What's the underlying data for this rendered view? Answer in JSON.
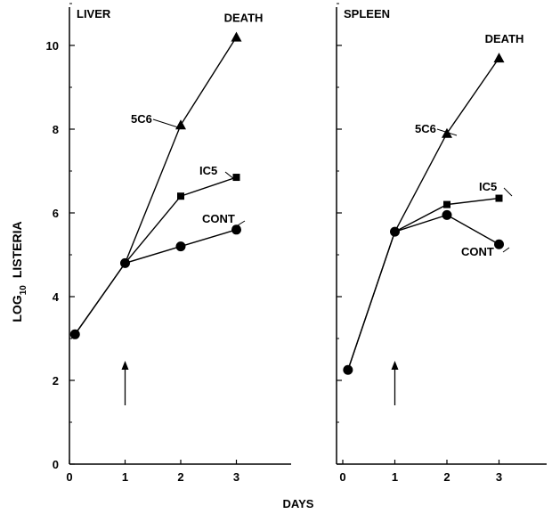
{
  "figure": {
    "ylabel_main": "LOG",
    "ylabel_sub": "10",
    "ylabel_rest": "LISTERIA",
    "xlabel": "DAYS"
  },
  "chart_data": [
    {
      "type": "line",
      "title": "LIVER",
      "xlabel": "DAYS",
      "ylabel": "LOG10 LISTERIA",
      "xlim": [
        0,
        4
      ],
      "ylim": [
        0,
        11
      ],
      "xticks": [
        0,
        1,
        2,
        3
      ],
      "yticks": [
        0,
        2,
        4,
        6,
        8,
        10
      ],
      "arrow_at_x": 1,
      "grid": false,
      "series": [
        {
          "name": "5C6",
          "marker": "triangle",
          "x": [
            0.1,
            1,
            2,
            3
          ],
          "y": [
            3.1,
            4.8,
            8.1,
            10.2
          ],
          "end_label": "DEATH"
        },
        {
          "name": "IC5",
          "marker": "square",
          "x": [
            1,
            2,
            3
          ],
          "y": [
            4.8,
            6.4,
            6.85
          ]
        },
        {
          "name": "CONT",
          "marker": "circle",
          "x": [
            0.1,
            1,
            2,
            3
          ],
          "y": [
            3.1,
            4.8,
            5.2,
            5.6
          ]
        }
      ]
    },
    {
      "type": "line",
      "title": "SPLEEN",
      "xlabel": "DAYS",
      "ylabel": "LOG10 LISTERIA",
      "xlim": [
        0,
        4
      ],
      "ylim": [
        0,
        11
      ],
      "xticks": [
        0,
        1,
        2,
        3
      ],
      "yticks": [
        0,
        2,
        4,
        6,
        8,
        10
      ],
      "arrow_at_x": 1,
      "grid": false,
      "series": [
        {
          "name": "5C6",
          "marker": "triangle",
          "x": [
            0.1,
            1,
            2,
            3
          ],
          "y": [
            2.25,
            5.55,
            7.9,
            9.7
          ],
          "end_label": "DEATH"
        },
        {
          "name": "IC5",
          "marker": "square",
          "x": [
            1,
            2,
            3
          ],
          "y": [
            5.55,
            6.2,
            6.35
          ]
        },
        {
          "name": "CONT",
          "marker": "circle",
          "x": [
            0.1,
            1,
            2,
            3
          ],
          "y": [
            2.25,
            5.55,
            5.95,
            5.25
          ]
        }
      ]
    }
  ]
}
